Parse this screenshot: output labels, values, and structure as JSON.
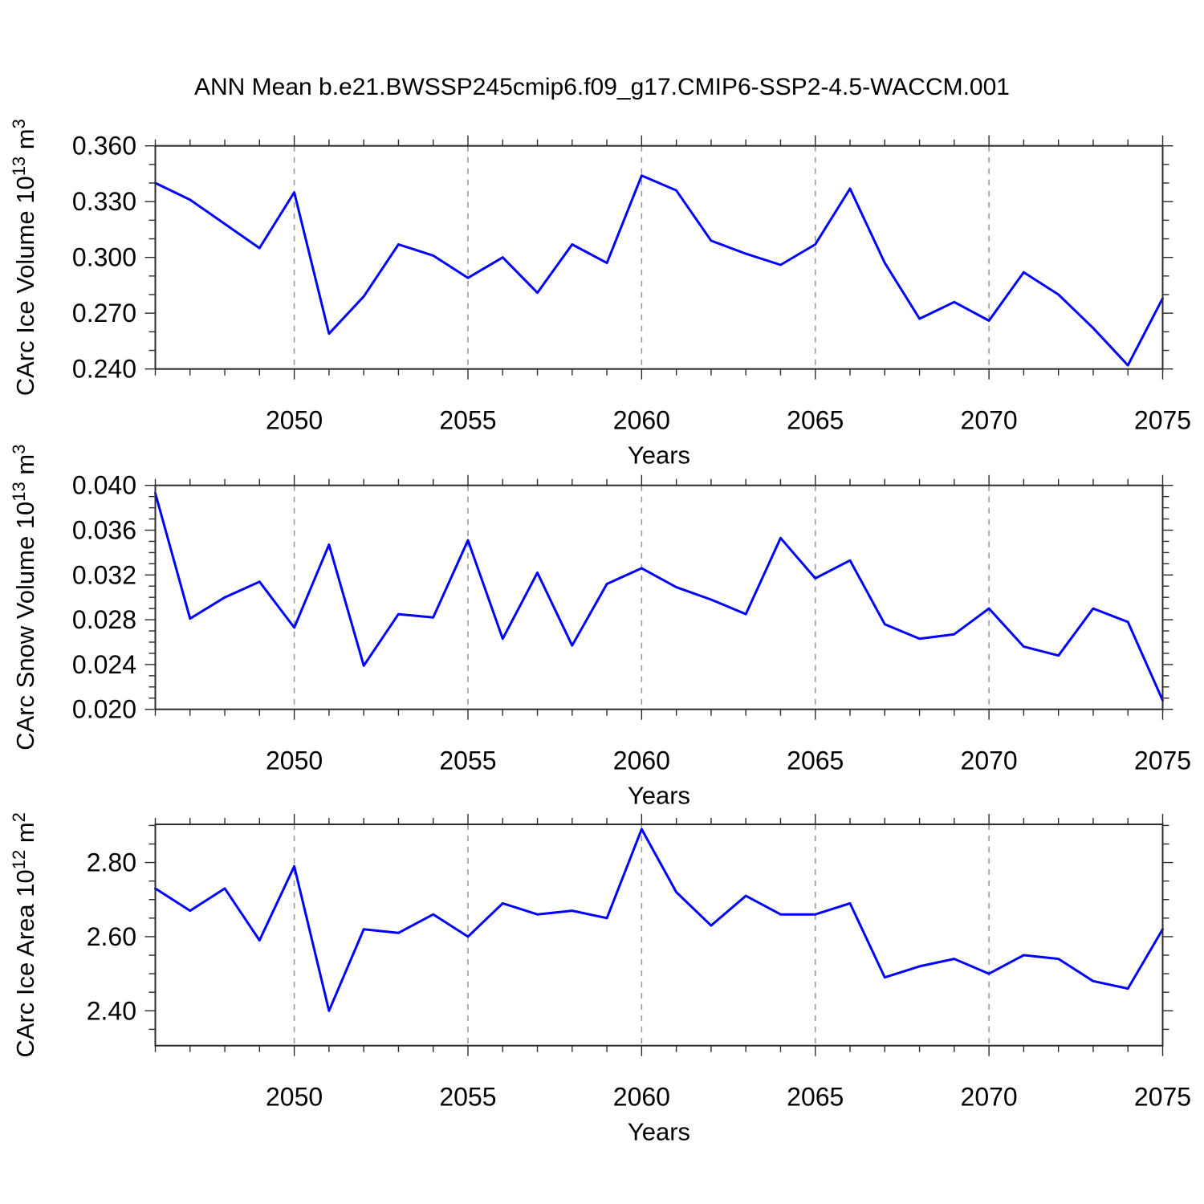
{
  "title": "ANN Mean b.e21.BWSSP245cmip6.f09_g17.CMIP6-SSP2-4.5-WACCM.001",
  "colors": {
    "line": "#0000ff",
    "frame": "#2b2b2b",
    "grid": "#9a9a9a",
    "text": "#000000",
    "background": "#ffffff"
  },
  "x_axis": {
    "label": "Years",
    "xlim": [
      2046,
      2075
    ],
    "xticks": [
      2050,
      2055,
      2060,
      2065,
      2070,
      2075
    ],
    "xtick_labels": [
      "2050",
      "2055",
      "2060",
      "2065",
      "2070",
      "2075"
    ],
    "x_minor_step": 1,
    "grid_ticks": [
      2050,
      2055,
      2060,
      2065,
      2070
    ]
  },
  "chart_data": [
    {
      "type": "line",
      "name": "carc-ice-volume",
      "ylabel_parts": [
        [
          "CArc Ice Volume 10",
          0
        ],
        [
          "13",
          1
        ],
        [
          " m",
          0
        ],
        [
          "3",
          1
        ]
      ],
      "ylabel_plain": "CArc Ice Volume 10^13 m^3",
      "ylim": [
        0.24,
        0.36
      ],
      "yticks": [
        0.24,
        0.27,
        0.3,
        0.33,
        0.36
      ],
      "ytick_labels": [
        "0.240",
        "0.270",
        "0.300",
        "0.330",
        "0.360"
      ],
      "y_minor_step": 0.01,
      "x": [
        2046,
        2047,
        2048,
        2049,
        2050,
        2051,
        2052,
        2053,
        2054,
        2055,
        2056,
        2057,
        2058,
        2059,
        2060,
        2061,
        2062,
        2063,
        2064,
        2065,
        2066,
        2067,
        2068,
        2069,
        2070,
        2071,
        2072,
        2073,
        2074,
        2075
      ],
      "values": [
        0.34,
        0.331,
        0.318,
        0.305,
        0.335,
        0.259,
        0.279,
        0.307,
        0.301,
        0.289,
        0.3,
        0.281,
        0.307,
        0.297,
        0.344,
        0.336,
        0.309,
        0.302,
        0.296,
        0.307,
        0.337,
        0.297,
        0.267,
        0.276,
        0.266,
        0.292,
        0.28,
        0.262,
        0.242,
        0.278
      ]
    },
    {
      "type": "line",
      "name": "carc-snow-volume",
      "ylabel_parts": [
        [
          "CArc Snow Volume 10",
          0
        ],
        [
          "13",
          1
        ],
        [
          " m",
          0
        ],
        [
          "3",
          1
        ]
      ],
      "ylabel_plain": "CArc Snow Volume 10^13 m^3",
      "ylim": [
        0.02,
        0.04
      ],
      "yticks": [
        0.02,
        0.024,
        0.028,
        0.032,
        0.036,
        0.04
      ],
      "ytick_labels": [
        "0.020",
        "0.024",
        "0.028",
        "0.032",
        "0.036",
        "0.040"
      ],
      "y_minor_step": 0.001,
      "x": [
        2046,
        2047,
        2048,
        2049,
        2050,
        2051,
        2052,
        2053,
        2054,
        2055,
        2056,
        2057,
        2058,
        2059,
        2060,
        2061,
        2062,
        2063,
        2064,
        2065,
        2066,
        2067,
        2068,
        2069,
        2070,
        2071,
        2072,
        2073,
        2074,
        2075
      ],
      "values": [
        0.0393,
        0.0281,
        0.03,
        0.0314,
        0.0273,
        0.0347,
        0.0239,
        0.0285,
        0.0282,
        0.0351,
        0.0263,
        0.0322,
        0.0257,
        0.0312,
        0.0326,
        0.0309,
        0.0298,
        0.0285,
        0.0353,
        0.0317,
        0.0333,
        0.0276,
        0.0263,
        0.0267,
        0.029,
        0.0256,
        0.0248,
        0.029,
        0.0278,
        0.0208
      ]
    },
    {
      "type": "line",
      "name": "carc-ice-area",
      "ylabel_parts": [
        [
          "CArc Ice Area 10",
          0
        ],
        [
          "12",
          1
        ],
        [
          " m",
          0
        ],
        [
          "2",
          1
        ]
      ],
      "ylabel_plain": "CArc Ice Area 10^12 m^2",
      "ylim": [
        2.306,
        2.903
      ],
      "yticks": [
        2.4,
        2.6,
        2.8
      ],
      "ytick_labels": [
        "2.40",
        "2.60",
        "2.80"
      ],
      "y_minor_step": 0.05,
      "x": [
        2046,
        2047,
        2048,
        2049,
        2050,
        2051,
        2052,
        2053,
        2054,
        2055,
        2056,
        2057,
        2058,
        2059,
        2060,
        2061,
        2062,
        2063,
        2064,
        2065,
        2066,
        2067,
        2068,
        2069,
        2070,
        2071,
        2072,
        2073,
        2074,
        2075
      ],
      "values": [
        2.73,
        2.67,
        2.73,
        2.59,
        2.79,
        2.4,
        2.62,
        2.61,
        2.66,
        2.6,
        2.69,
        2.66,
        2.67,
        2.65,
        2.89,
        2.72,
        2.63,
        2.71,
        2.66,
        2.66,
        2.69,
        2.49,
        2.52,
        2.54,
        2.5,
        2.55,
        2.54,
        2.48,
        2.46,
        2.62
      ]
    }
  ]
}
